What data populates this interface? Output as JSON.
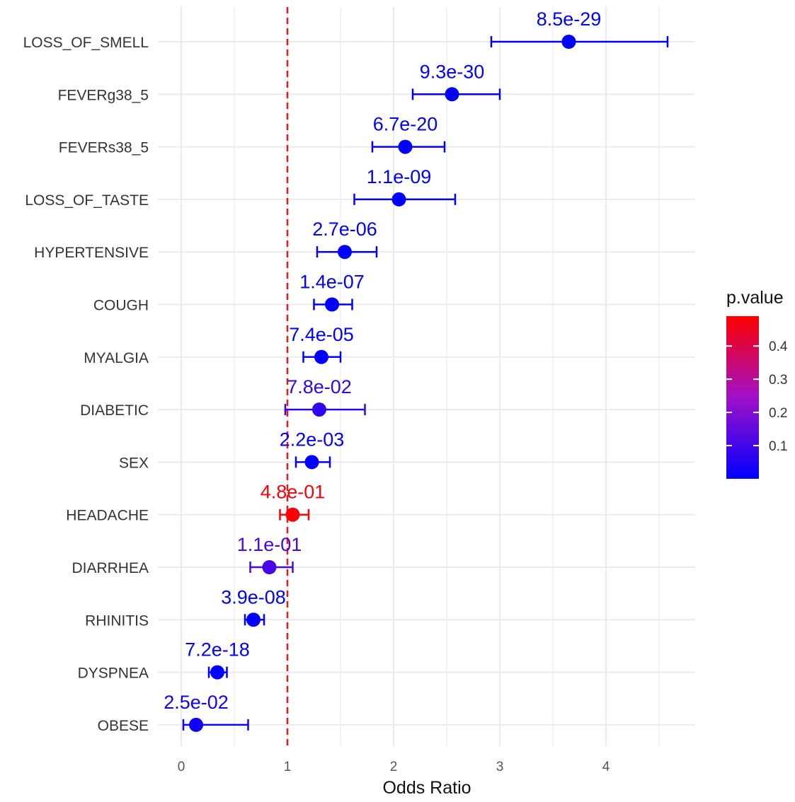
{
  "chart_data": {
    "type": "forest",
    "xlabel": "Odds Ratio",
    "xlim": [
      -0.22,
      4.84
    ],
    "x_ticks": [
      0,
      1,
      2,
      3,
      4
    ],
    "x_tick_labels": [
      "0",
      "1",
      "2",
      "3",
      "4"
    ],
    "reference_line": {
      "x": 1,
      "style": "dashed",
      "color": "#e41a1c"
    },
    "grid": true,
    "categories": [
      "LOSS_OF_SMELL",
      "FEVERg38_5",
      "FEVERs38_5",
      "LOSS_OF_TASTE",
      "HYPERTENSIVE",
      "COUGH",
      "MYALGIA",
      "DIABETIC",
      "SEX",
      "HEADACHE",
      "DIARRHEA",
      "RHINITIS",
      "DYSPNEA",
      "OBESE"
    ],
    "series": [
      {
        "points": [
          {
            "label": "LOSS_OF_SMELL",
            "or": 3.65,
            "lo": 2.92,
            "hi": 4.58,
            "p": 8.5e-29,
            "p_text": "8.5e-29"
          },
          {
            "label": "FEVERg38_5",
            "or": 2.55,
            "lo": 2.18,
            "hi": 3.0,
            "p": 9.3e-30,
            "p_text": "9.3e-30"
          },
          {
            "label": "FEVERs38_5",
            "or": 2.11,
            "lo": 1.8,
            "hi": 2.48,
            "p": 6.7e-20,
            "p_text": "6.7e-20"
          },
          {
            "label": "LOSS_OF_TASTE",
            "or": 2.05,
            "lo": 1.63,
            "hi": 2.58,
            "p": 1.1e-09,
            "p_text": "1.1e-09"
          },
          {
            "label": "HYPERTENSIVE",
            "or": 1.54,
            "lo": 1.28,
            "hi": 1.84,
            "p": 2.7e-06,
            "p_text": "2.7e-06"
          },
          {
            "label": "COUGH",
            "or": 1.42,
            "lo": 1.25,
            "hi": 1.61,
            "p": 1.4e-07,
            "p_text": "1.4e-07"
          },
          {
            "label": "MYALGIA",
            "or": 1.32,
            "lo": 1.15,
            "hi": 1.5,
            "p": 7.4e-05,
            "p_text": "7.4e-05"
          },
          {
            "label": "DIABETIC",
            "or": 1.3,
            "lo": 0.98,
            "hi": 1.73,
            "p": 0.078,
            "p_text": "7.8e-02"
          },
          {
            "label": "SEX",
            "or": 1.23,
            "lo": 1.08,
            "hi": 1.4,
            "p": 0.0022,
            "p_text": "2.2e-03"
          },
          {
            "label": "HEADACHE",
            "or": 1.05,
            "lo": 0.93,
            "hi": 1.2,
            "p": 0.48,
            "p_text": "4.8e-01"
          },
          {
            "label": "DIARRHEA",
            "or": 0.83,
            "lo": 0.65,
            "hi": 1.05,
            "p": 0.11,
            "p_text": "1.1e-01"
          },
          {
            "label": "RHINITIS",
            "or": 0.68,
            "lo": 0.6,
            "hi": 0.78,
            "p": 3.9e-08,
            "p_text": "3.9e-08"
          },
          {
            "label": "DYSPNEA",
            "or": 0.34,
            "lo": 0.26,
            "hi": 0.43,
            "p": 7.2e-18,
            "p_text": "7.2e-18"
          },
          {
            "label": "OBESE",
            "or": 0.14,
            "lo": 0.02,
            "hi": 0.63,
            "p": 0.025,
            "p_text": "2.5e-02"
          }
        ]
      }
    ],
    "legend": {
      "title": "p.value",
      "placement": "right",
      "range": [
        0.0,
        0.49
      ],
      "ticks": [
        0.1,
        0.2,
        0.3,
        0.4
      ],
      "tick_labels": [
        "0.1",
        "0.2",
        "0.3",
        "0.4"
      ],
      "color_low": "#0000ff",
      "color_high": "#ff0000"
    }
  }
}
